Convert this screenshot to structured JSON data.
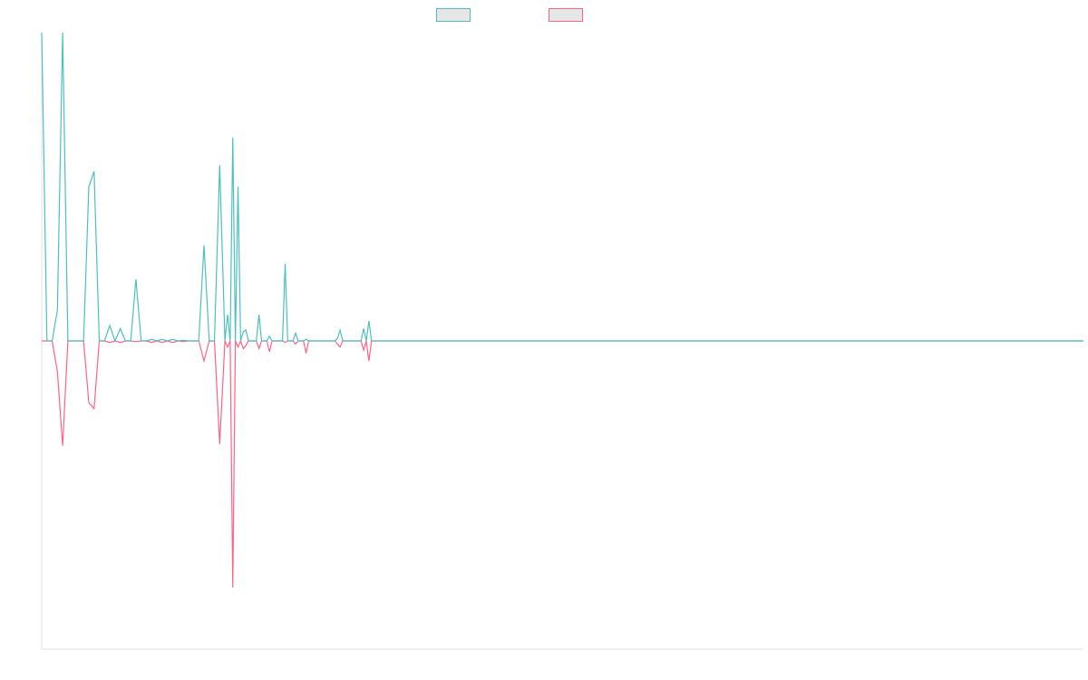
{
  "chart_data": {
    "type": "line",
    "title": "",
    "xlabel": "",
    "ylabel": "",
    "legend_position": "top-center",
    "grid": false,
    "ylim": [
      -1.0,
      1.0
    ],
    "x_count": 200,
    "series": [
      {
        "color": "#4bc0c0",
        "label": "",
        "points": [
          [
            0,
            1.0
          ],
          [
            1,
            0.0
          ],
          [
            2,
            0.0
          ],
          [
            3,
            0.1
          ],
          [
            4,
            1.0
          ],
          [
            5,
            0.0
          ],
          [
            8,
            0.0
          ],
          [
            9,
            0.5
          ],
          [
            10,
            0.55
          ],
          [
            11,
            0.0
          ],
          [
            12,
            0.0
          ],
          [
            13,
            0.05
          ],
          [
            14,
            0.0
          ],
          [
            15,
            0.04
          ],
          [
            16,
            0.0
          ],
          [
            17,
            0.0
          ],
          [
            18,
            0.2
          ],
          [
            19,
            0.0
          ],
          [
            20,
            0.0
          ],
          [
            21,
            0.005
          ],
          [
            22,
            0.0
          ],
          [
            23,
            0.005
          ],
          [
            24,
            0.0
          ],
          [
            25,
            0.005
          ],
          [
            26,
            0.0
          ],
          [
            27,
            0.002
          ],
          [
            28,
            0.0
          ],
          [
            30,
            0.0
          ],
          [
            31,
            0.31
          ],
          [
            32,
            0.0
          ],
          [
            33,
            0.0
          ],
          [
            34,
            0.57
          ],
          [
            35,
            0.0
          ],
          [
            35.5,
            0.085
          ],
          [
            36,
            0.0
          ],
          [
            36.5,
            0.66
          ],
          [
            37,
            0.0
          ],
          [
            37.5,
            0.5
          ],
          [
            38,
            0.0
          ],
          [
            38.5,
            0.03
          ],
          [
            39,
            0.035
          ],
          [
            39.5,
            0.0
          ],
          [
            40,
            0.0
          ],
          [
            41,
            0.0
          ],
          [
            41.5,
            0.085
          ],
          [
            42,
            0.0
          ],
          [
            43,
            0.0
          ],
          [
            43.5,
            0.015
          ],
          [
            44,
            0.0
          ],
          [
            46,
            0.0
          ],
          [
            46.5,
            0.25
          ],
          [
            47,
            0.0
          ],
          [
            48,
            0.0
          ],
          [
            48.5,
            0.025
          ],
          [
            49,
            0.0
          ],
          [
            50,
            0.0
          ],
          [
            50.5,
            0.005
          ],
          [
            51,
            0.0
          ],
          [
            56,
            0.0
          ],
          [
            56.5,
            0.008
          ],
          [
            57,
            0.035
          ],
          [
            57.5,
            0.0
          ],
          [
            61,
            0.0
          ],
          [
            61.5,
            0.04
          ],
          [
            62,
            0.0
          ],
          [
            62.5,
            0.065
          ],
          [
            63,
            0.0
          ],
          [
            199,
            0.0
          ]
        ]
      },
      {
        "color": "#ff6384",
        "label": "",
        "points": [
          [
            0,
            0.0
          ],
          [
            1,
            0.0
          ],
          [
            2,
            0.0
          ],
          [
            3,
            -0.1
          ],
          [
            4,
            -0.34
          ],
          [
            5,
            0.0
          ],
          [
            8,
            0.0
          ],
          [
            9,
            -0.2
          ],
          [
            10,
            -0.22
          ],
          [
            11,
            0.0
          ],
          [
            12,
            0.0
          ],
          [
            13,
            -0.005
          ],
          [
            14,
            0.0
          ],
          [
            15,
            -0.005
          ],
          [
            16,
            0.0
          ],
          [
            17,
            0.0
          ],
          [
            18,
            -0.002
          ],
          [
            19,
            0.0
          ],
          [
            20,
            0.0
          ],
          [
            21,
            -0.005
          ],
          [
            22,
            0.0
          ],
          [
            23,
            -0.005
          ],
          [
            24,
            0.0
          ],
          [
            25,
            -0.005
          ],
          [
            26,
            0.0
          ],
          [
            27,
            -0.002
          ],
          [
            28,
            0.0
          ],
          [
            30,
            0.0
          ],
          [
            31,
            -0.065
          ],
          [
            32,
            0.0
          ],
          [
            33,
            0.0
          ],
          [
            34,
            -0.335
          ],
          [
            35,
            0.0
          ],
          [
            35.5,
            -0.02
          ],
          [
            36,
            0.0
          ],
          [
            36.5,
            -0.8
          ],
          [
            37,
            0.0
          ],
          [
            37.5,
            -0.02
          ],
          [
            38,
            0.0
          ],
          [
            38.5,
            -0.025
          ],
          [
            39,
            -0.015
          ],
          [
            39.5,
            0.0
          ],
          [
            40,
            0.0
          ],
          [
            41,
            0.0
          ],
          [
            41.5,
            -0.025
          ],
          [
            42,
            0.0
          ],
          [
            43,
            0.0
          ],
          [
            43.5,
            -0.035
          ],
          [
            44,
            0.0
          ],
          [
            46,
            0.0
          ],
          [
            46.5,
            -0.005
          ],
          [
            47,
            0.0
          ],
          [
            48,
            0.0
          ],
          [
            48.5,
            -0.01
          ],
          [
            49,
            0.0
          ],
          [
            50,
            0.0
          ],
          [
            50.5,
            -0.04
          ],
          [
            51,
            0.0
          ],
          [
            56,
            0.0
          ],
          [
            56.5,
            -0.01
          ],
          [
            57,
            -0.02
          ],
          [
            57.5,
            0.0
          ],
          [
            61,
            0.0
          ],
          [
            61.5,
            -0.03
          ],
          [
            62,
            0.0
          ],
          [
            62.5,
            -0.065
          ],
          [
            63,
            0.0
          ],
          [
            199,
            0.0
          ]
        ]
      }
    ]
  }
}
